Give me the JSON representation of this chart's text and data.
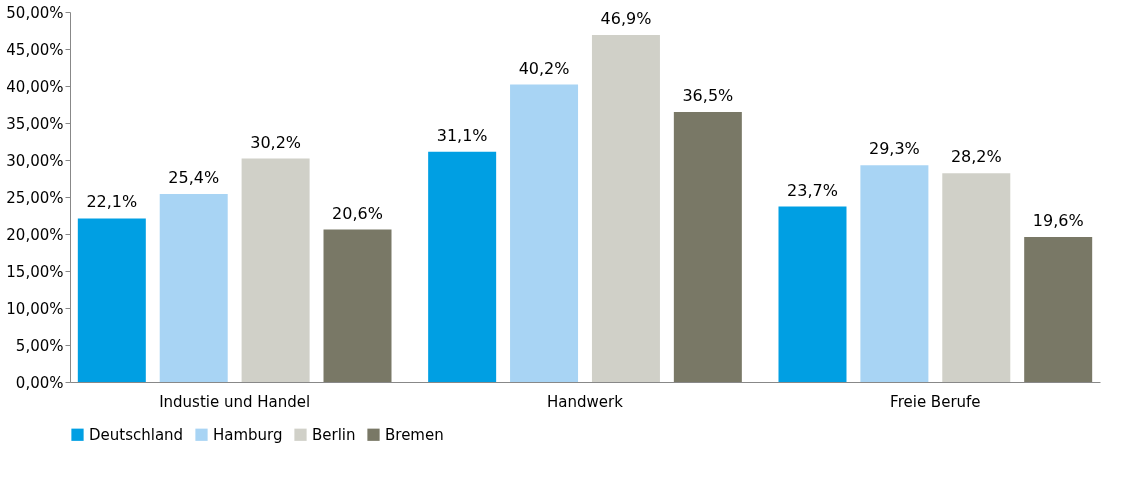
{
  "chart_data": {
    "type": "bar",
    "categories": [
      "Industie und Handel",
      "Handwerk",
      "Freie Berufe"
    ],
    "series": [
      {
        "name": "Deutschland",
        "color": "#009fe3",
        "values": [
          22.1,
          31.1,
          23.7
        ],
        "value_labels": [
          "22,1%",
          "31,1%",
          "23,7%"
        ]
      },
      {
        "name": "Hamburg",
        "color": "#a8d4f4",
        "values": [
          25.4,
          40.2,
          29.3
        ],
        "value_labels": [
          "25,4%",
          "40,2%",
          "29,3%"
        ]
      },
      {
        "name": "Berlin",
        "color": "#d0d0c8",
        "values": [
          30.2,
          46.9,
          28.2
        ],
        "value_labels": [
          "30,2%",
          "46,9%",
          "28,2%"
        ]
      },
      {
        "name": "Bremen",
        "color": "#797866",
        "values": [
          20.6,
          36.5,
          19.6
        ],
        "value_labels": [
          "20,6%",
          "36,5%",
          "19,6%"
        ]
      }
    ],
    "ylim": [
      0,
      50
    ],
    "yticks": [
      {
        "value": 0,
        "label": "0,00%"
      },
      {
        "value": 5,
        "label": "5,00%"
      },
      {
        "value": 10,
        "label": "10,00%"
      },
      {
        "value": 15,
        "label": "15,00%"
      },
      {
        "value": 20,
        "label": "20,00%"
      },
      {
        "value": 25,
        "label": "25,00%"
      },
      {
        "value": 30,
        "label": "30,00%"
      },
      {
        "value": 35,
        "label": "35,00%"
      },
      {
        "value": 40,
        "label": "40,00%"
      },
      {
        "value": 45,
        "label": "45,00%"
      },
      {
        "value": 50,
        "label": "50,00%"
      }
    ],
    "grid": false,
    "legend": "bottom"
  }
}
